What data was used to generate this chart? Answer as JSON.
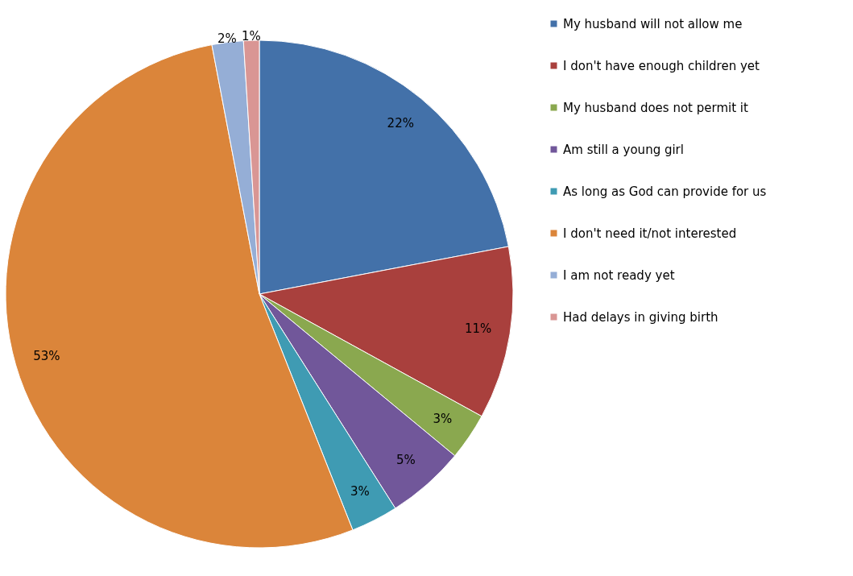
{
  "chart_data": {
    "type": "pie",
    "categories": [
      "My husband will not allow me",
      "I don't have enough children yet",
      "My husband does not permit it",
      "Am still a young girl",
      "As long as God can provide for us",
      "I don't need it/not interested",
      "I am not ready yet",
      "Had delays in giving birth"
    ],
    "values": [
      22,
      11,
      3,
      5,
      3,
      53,
      2,
      1
    ],
    "colors": [
      "#4371a9",
      "#a9403d",
      "#8aa84f",
      "#71579a",
      "#3f9bb3",
      "#db853a",
      "#95aed6",
      "#d99694"
    ],
    "value_labels": [
      "22%",
      "11%",
      "3%",
      "5%",
      "3%",
      "53%",
      "2%",
      "1%"
    ],
    "legend": "right"
  }
}
